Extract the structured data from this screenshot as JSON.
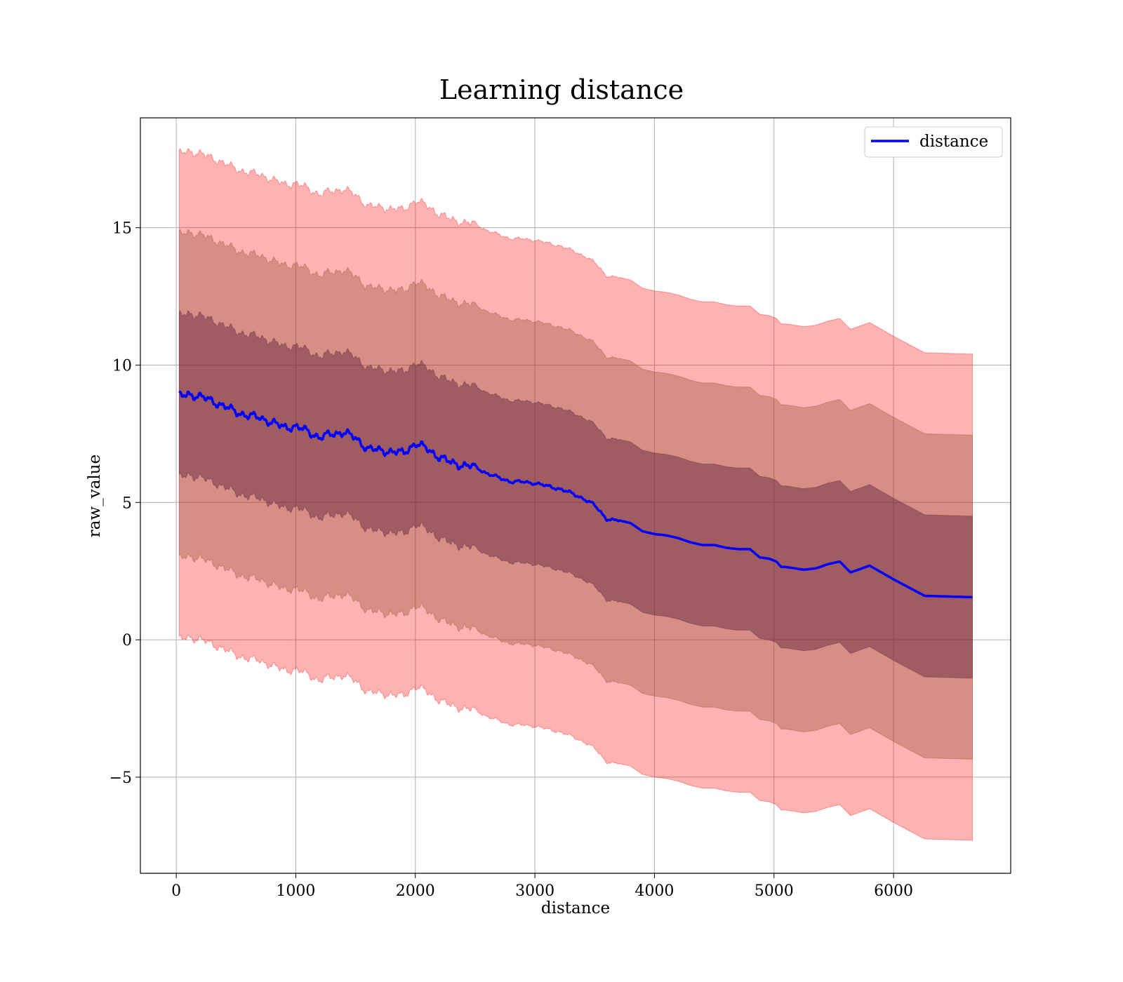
{
  "chart_data": {
    "type": "line",
    "title": "Learning distance",
    "xlabel": "distance",
    "ylabel": "raw_value",
    "xlim": [
      -300,
      6980
    ],
    "ylim": [
      -8.5,
      19
    ],
    "xticks": [
      0,
      1000,
      2000,
      3000,
      4000,
      5000,
      6000
    ],
    "yticks": [
      -5,
      0,
      5,
      10,
      15
    ],
    "xtick_labels": [
      "0",
      "1000",
      "2000",
      "3000",
      "4000",
      "5000",
      "6000"
    ],
    "ytick_labels": [
      "−5",
      "0",
      "5",
      "10",
      "15"
    ],
    "grid": true,
    "legend": {
      "placement": "top-right",
      "entries": [
        "distance"
      ]
    },
    "colors": {
      "line": "#0000ff",
      "band_outer": "#ff0000",
      "band_inner_mix": "#8b4a2e",
      "band_core": "#5a1e3c"
    },
    "series": [
      {
        "name": "distance",
        "band_offsets_std": [
          1,
          2,
          3
        ],
        "std": 2.95,
        "x": [
          25,
          100,
          200,
          300,
          400,
          500,
          600,
          700,
          800,
          900,
          1000,
          1100,
          1200,
          1300,
          1400,
          1500,
          1600,
          1700,
          1800,
          1900,
          2000,
          2100,
          2200,
          2300,
          2400,
          2500,
          2600,
          2700,
          2800,
          2900,
          3000,
          3100,
          3200,
          3300,
          3400,
          3500,
          3600,
          3650,
          3700,
          3800,
          3900,
          4000,
          4100,
          4200,
          4300,
          4400,
          4500,
          4600,
          4700,
          4800,
          4880,
          4960,
          5020,
          5060,
          5100,
          5250,
          5350,
          5450,
          5550,
          5640,
          5800,
          6000,
          6260,
          6660
        ],
        "y": [
          8.85,
          8.95,
          8.85,
          8.7,
          8.5,
          8.3,
          8.15,
          8.1,
          7.9,
          7.75,
          7.75,
          7.6,
          7.35,
          7.5,
          7.55,
          7.35,
          6.95,
          6.9,
          6.85,
          6.8,
          7.15,
          6.95,
          6.65,
          6.45,
          6.35,
          6.3,
          6.05,
          5.9,
          5.75,
          5.75,
          5.7,
          5.6,
          5.5,
          5.35,
          5.15,
          4.9,
          4.4,
          4.35,
          4.35,
          4.25,
          3.95,
          3.85,
          3.8,
          3.7,
          3.55,
          3.45,
          3.45,
          3.35,
          3.3,
          3.3,
          3.0,
          2.95,
          2.85,
          2.65,
          2.65,
          2.55,
          2.6,
          2.75,
          2.85,
          2.45,
          2.7,
          2.2,
          1.6,
          1.55
        ]
      }
    ]
  }
}
